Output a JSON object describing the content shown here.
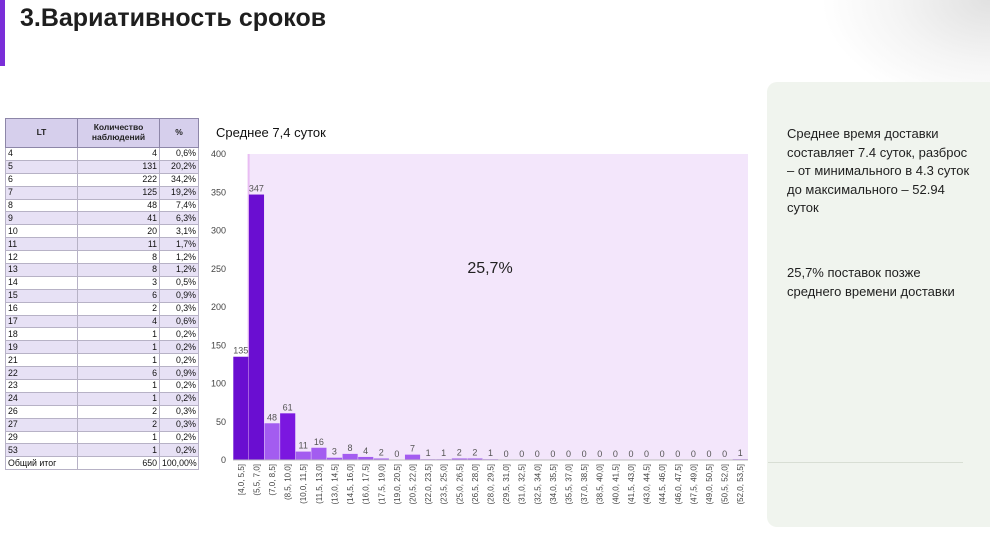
{
  "title": "3.Вариативность сроков",
  "table": {
    "headers": [
      "LT",
      "Количество наблюдений",
      "%"
    ],
    "rows": [
      [
        "4",
        "4",
        "0,6%"
      ],
      [
        "5",
        "131",
        "20,2%"
      ],
      [
        "6",
        "222",
        "34,2%"
      ],
      [
        "7",
        "125",
        "19,2%"
      ],
      [
        "8",
        "48",
        "7,4%"
      ],
      [
        "9",
        "41",
        "6,3%"
      ],
      [
        "10",
        "20",
        "3,1%"
      ],
      [
        "11",
        "11",
        "1,7%"
      ],
      [
        "12",
        "8",
        "1,2%"
      ],
      [
        "13",
        "8",
        "1,2%"
      ],
      [
        "14",
        "3",
        "0,5%"
      ],
      [
        "15",
        "6",
        "0,9%"
      ],
      [
        "16",
        "2",
        "0,3%"
      ],
      [
        "17",
        "4",
        "0,6%"
      ],
      [
        "18",
        "1",
        "0,2%"
      ],
      [
        "19",
        "1",
        "0,2%"
      ],
      [
        "21",
        "1",
        "0,2%"
      ],
      [
        "22",
        "6",
        "0,9%"
      ],
      [
        "23",
        "1",
        "0,2%"
      ],
      [
        "24",
        "1",
        "0,2%"
      ],
      [
        "26",
        "2",
        "0,3%"
      ],
      [
        "27",
        "2",
        "0,3%"
      ],
      [
        "29",
        "1",
        "0,2%"
      ],
      [
        "53",
        "1",
        "0,2%"
      ]
    ],
    "total": [
      "Общий итог",
      "650",
      "100,00%"
    ]
  },
  "chart_data": {
    "type": "bar",
    "title": "Среднее 7,4 суток",
    "categories": [
      "[4,0, 5,5]",
      "(5,5, 7,0]",
      "(7,0, 8,5]",
      "(8,5, 10,0]",
      "(10,0, 11,5]",
      "(11,5, 13,0]",
      "(13,0, 14,5]",
      "(14,5, 16,0]",
      "(16,0, 17,5]",
      "(17,5, 19,0]",
      "(19,0, 20,5]",
      "(20,5, 22,0]",
      "(22,0, 23,5]",
      "(23,5, 25,0]",
      "(25,0, 26,5]",
      "(26,5, 28,0]",
      "(28,0, 29,5]",
      "(29,5, 31,0]",
      "(31,0, 32,5]",
      "(32,5, 34,0]",
      "(34,0, 35,5]",
      "(35,5, 37,0]",
      "(37,0, 38,5]",
      "(38,5, 40,0]",
      "(40,0, 41,5]",
      "(41,5, 43,0]",
      "(43,0, 44,5]",
      "(44,5, 46,0]",
      "(46,0, 47,5]",
      "(47,5, 49,0]",
      "(49,0, 50,5]",
      "(50,5, 52,0]",
      "(52,0, 53,5]"
    ],
    "values": [
      135,
      347,
      48,
      61,
      11,
      16,
      3,
      8,
      4,
      2,
      0,
      7,
      1,
      1,
      2,
      2,
      1,
      0,
      0,
      0,
      0,
      0,
      0,
      0,
      0,
      0,
      0,
      0,
      0,
      0,
      0,
      0,
      1
    ],
    "ylim": [
      0,
      400
    ],
    "yticks": [
      0,
      50,
      100,
      150,
      200,
      250,
      300,
      350,
      400
    ],
    "highlight_region": {
      "from_category_index": 1,
      "label": "25,7%"
    },
    "colors": {
      "bar_main": "#7b17e0",
      "bar_dark": "#6a0ed1",
      "bar_light": "#a35cf0",
      "highlight": "#f3e6fb",
      "highlight_line": "#e9bdf3"
    }
  },
  "side_panel": {
    "paragraph1": "Среднее время доставки составляет 7.4 суток, разброс – от минимального в 4.3 суток до максимального – 52.94 суток",
    "paragraph2": "25,7% поставок позже среднего времени доставки"
  }
}
